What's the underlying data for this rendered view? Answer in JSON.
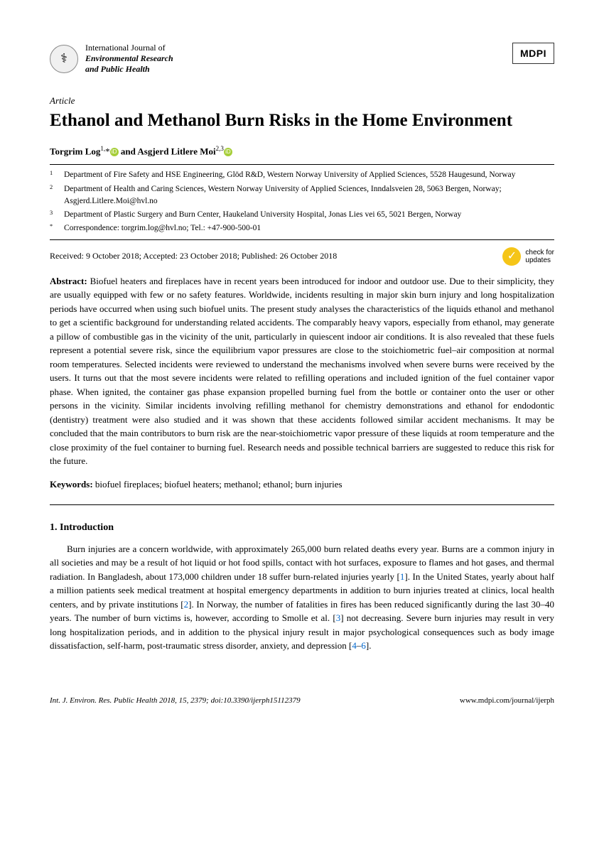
{
  "journal": {
    "line1": "International Journal of",
    "line2": "Environmental Research",
    "line3": "and Public Health"
  },
  "publisher_badge": "MDPI",
  "article_type": "Article",
  "title": "Ethanol and Methanol Burn Risks in the Home Environment",
  "authors": {
    "a1_name": "Torgrim Log",
    "a1_sup": "1,",
    "a1_corr": "*",
    "sep": " and ",
    "a2_name": "Asgjerd Litlere Moi",
    "a2_sup": "2,3"
  },
  "affiliations": [
    {
      "marker": "1",
      "text": "Department of Fire Safety and HSE Engineering, Glöd R&D, Western Norway University of Applied Sciences, 5528 Haugesund, Norway"
    },
    {
      "marker": "2",
      "text": "Department of Health and Caring Sciences, Western Norway University of Applied Sciences, Inndalsveien 28, 5063 Bergen, Norway; Asgjerd.Litlere.Moi@hvl.no"
    },
    {
      "marker": "3",
      "text": "Department of Plastic Surgery and Burn Center, Haukeland University Hospital, Jonas Lies vei 65, 5021 Bergen, Norway"
    },
    {
      "marker": "*",
      "text": "Correspondence: torgrim.log@hvl.no; Tel.: +47-900-500-01"
    }
  ],
  "dates": "Received: 9 October 2018; Accepted: 23 October 2018; Published: 26 October 2018",
  "check_updates": {
    "line1": "check for",
    "line2": "updates"
  },
  "abstract_label": "Abstract:",
  "abstract": "Biofuel heaters and fireplaces have in recent years been introduced for indoor and outdoor use. Due to their simplicity, they are usually equipped with few or no safety features. Worldwide, incidents resulting in major skin burn injury and long hospitalization periods have occurred when using such biofuel units. The present study analyses the characteristics of the liquids ethanol and methanol to get a scientific background for understanding related accidents. The comparably heavy vapors, especially from ethanol, may generate a pillow of combustible gas in the vicinity of the unit, particularly in quiescent indoor air conditions. It is also revealed that these fuels represent a potential severe risk, since the equilibrium vapor pressures are close to the stoichiometric fuel–air composition at normal room temperatures. Selected incidents were reviewed to understand the mechanisms involved when severe burns were received by the users. It turns out that the most severe incidents were related to refilling operations and included ignition of the fuel container vapor phase. When ignited, the container gas phase expansion propelled burning fuel from the bottle or container onto the user or other persons in the vicinity. Similar incidents involving refilling methanol for chemistry demonstrations and ethanol for endodontic (dentistry) treatment were also studied and it was shown that these accidents followed similar accident mechanisms. It may be concluded that the main contributors to burn risk are the near-stoichiometric vapor pressure of these liquids at room temperature and the close proximity of the fuel container to burning fuel. Research needs and possible technical barriers are suggested to reduce this risk for the future.",
  "keywords_label": "Keywords:",
  "keywords": "biofuel fireplaces; biofuel heaters; methanol; ethanol; burn injuries",
  "section1_heading": "1. Introduction",
  "intro": {
    "p1a": "Burn injuries are a concern worldwide, with approximately 265,000 burn related deaths every year. Burns are a common injury in all societies and may be a result of hot liquid or hot food spills, contact with hot surfaces, exposure to flames and hot gases, and thermal radiation. In Bangladesh, about 173,000 children under 18 suffer burn-related injuries yearly [",
    "r1": "1",
    "p1b": "]. In the United States, yearly about half a million patients seek medical treatment at hospital emergency departments in addition to burn injuries treated at clinics, local health centers, and by private institutions [",
    "r2": "2",
    "p1c": "]. In Norway, the number of fatalities in fires has been reduced significantly during the last 30–40 years. The number of burn victims is, however, according to Smolle et al. [",
    "r3": "3",
    "p1d": "] not decreasing. Severe burn injuries may result in very long hospitalization periods, and in addition to the physical injury result in major psychological consequences such as body image dissatisfaction, self-harm, post-traumatic stress disorder, anxiety, and depression [",
    "r4": "4",
    "dash": "–",
    "r6": "6",
    "p1e": "]."
  },
  "footer": {
    "left": "Int. J. Environ. Res. Public Health 2018, 15, 2379; doi:10.3390/ijerph15112379",
    "right": "www.mdpi.com/journal/ijerph"
  },
  "colors": {
    "ref_link": "#0066cc",
    "orcid_bg": "#a6ce39",
    "check_bg": "#f5c518"
  }
}
